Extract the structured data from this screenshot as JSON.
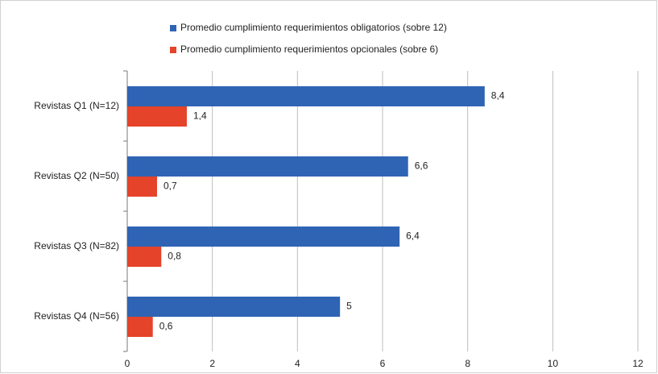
{
  "chart_data": {
    "type": "bar",
    "orientation": "horizontal",
    "categories": [
      "Revistas Q1 (N=12)",
      "Revistas Q2 (N=50)",
      "Revistas Q3 (N=82)",
      "Revistas Q4 (N=56)"
    ],
    "series": [
      {
        "name": "Promedio cumplimiento requerimientos obligatorios (sobre 12)",
        "color": "#2f64b4",
        "values": [
          8.4,
          6.6,
          6.4,
          5
        ],
        "value_labels": [
          "8,4",
          "6,6",
          "6,4",
          "5"
        ]
      },
      {
        "name": "Promedio cumplimiento requerimientos opcionales (sobre 6)",
        "color": "#e5432a",
        "values": [
          1.4,
          0.7,
          0.8,
          0.6
        ],
        "value_labels": [
          "1,4",
          "0,7",
          "0,8",
          "0,6"
        ]
      }
    ],
    "xlim": [
      0,
      12
    ],
    "xticks": [
      0,
      2,
      4,
      6,
      8,
      10,
      12
    ],
    "grid": true,
    "legend": "top"
  }
}
